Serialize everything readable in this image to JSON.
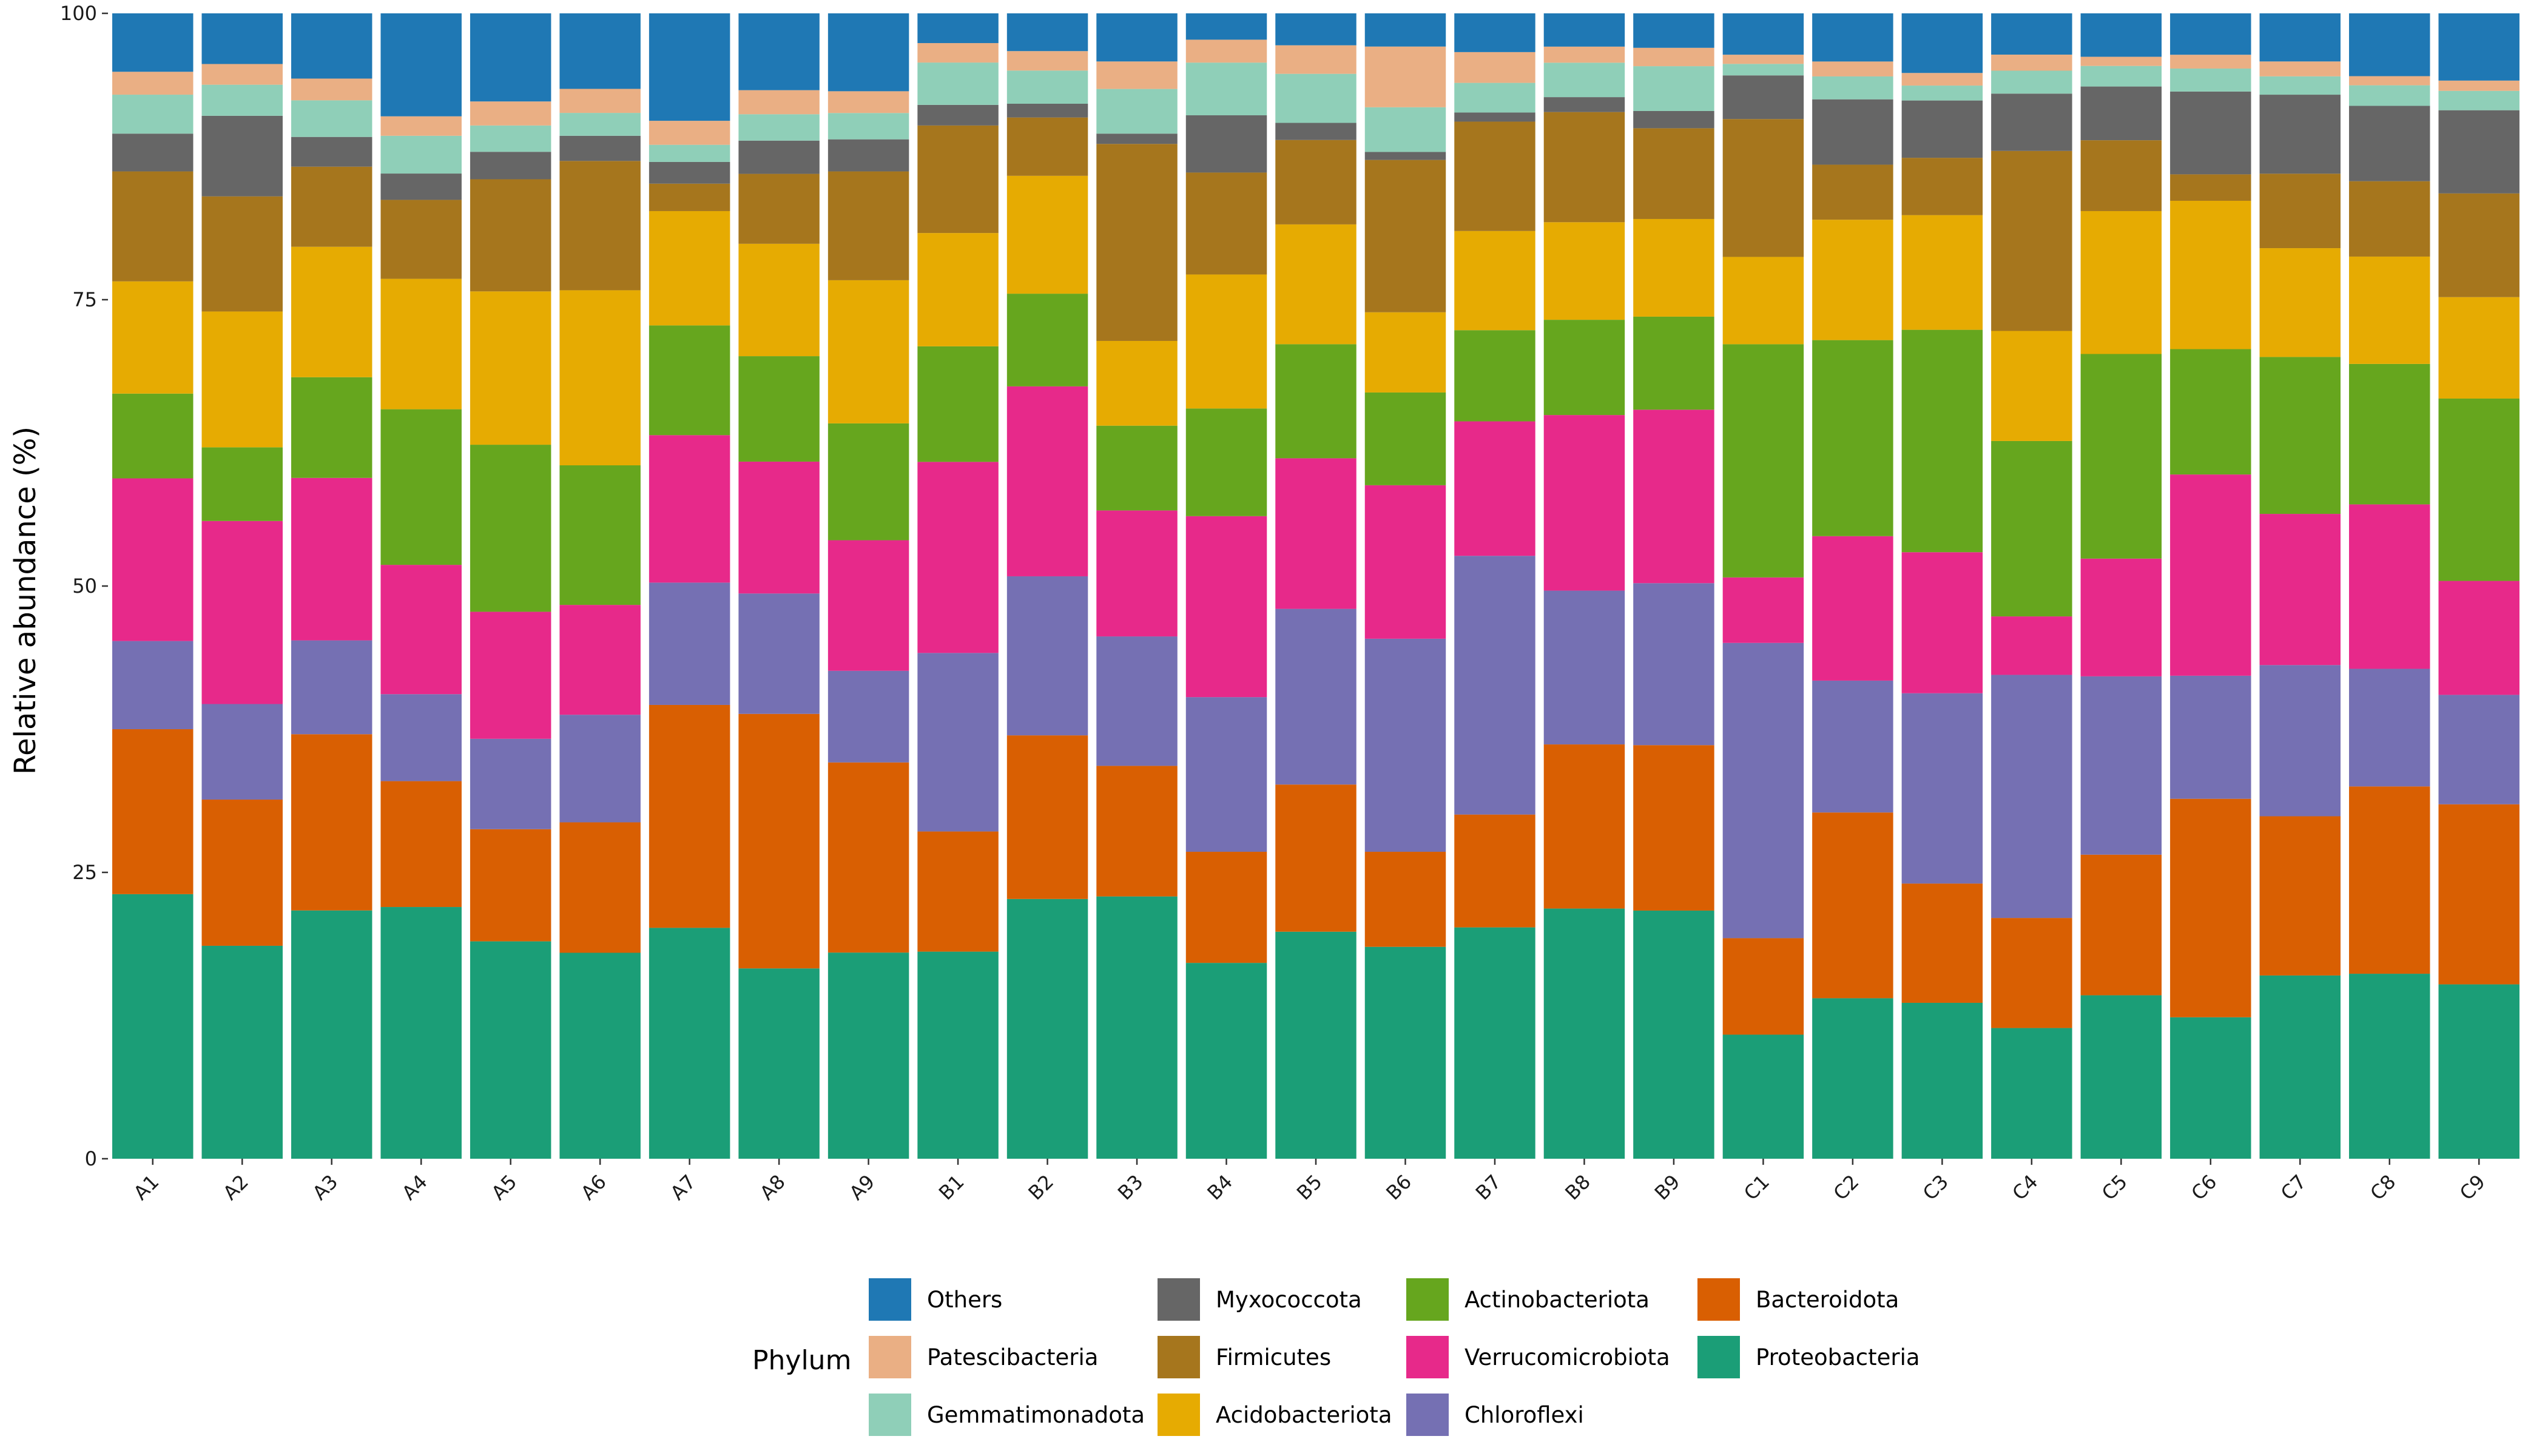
{
  "chart_data": {
    "type": "bar",
    "stacked": true,
    "title": "",
    "xlabel": "",
    "ylabel": "Relative abundance (%)",
    "ylim": [
      0,
      100
    ],
    "yticks": [
      0,
      25,
      50,
      75,
      100
    ],
    "grid": false,
    "legend": {
      "title": "Phylum",
      "placement": "bottom"
    },
    "categories": [
      "A1",
      "A2",
      "A3",
      "A4",
      "A5",
      "A6",
      "A7",
      "A8",
      "A9",
      "B1",
      "B2",
      "B3",
      "B4",
      "B5",
      "B6",
      "B7",
      "B8",
      "B9",
      "C1",
      "C2",
      "C3",
      "C4",
      "C5",
      "C6",
      "C7",
      "C8",
      "C9"
    ],
    "series": [
      {
        "name": "Proteobacteria",
        "color": "#1b9e77",
        "values": [
          23.1,
          18.5,
          21.7,
          22.0,
          19.0,
          18.0,
          20.2,
          16.6,
          18.0,
          18.1,
          22.7,
          22.9,
          17.1,
          19.9,
          18.5,
          20.3,
          21.8,
          21.6,
          10.8,
          14.0,
          13.6,
          11.4,
          14.3,
          12.3,
          16.0,
          16.2,
          15.3
        ]
      },
      {
        "name": "Bacteroidota",
        "color": "#d95f02",
        "values": [
          14.4,
          12.7,
          15.4,
          11.0,
          9.8,
          11.4,
          19.5,
          22.2,
          16.6,
          10.5,
          14.3,
          11.4,
          9.7,
          12.9,
          8.3,
          9.9,
          14.3,
          14.4,
          8.4,
          16.2,
          10.4,
          9.6,
          12.3,
          19.0,
          13.9,
          16.4,
          15.8
        ]
      },
      {
        "name": "Chloroflexi",
        "color": "#7570b3",
        "values": [
          7.7,
          8.3,
          8.2,
          7.6,
          7.9,
          9.4,
          10.7,
          10.5,
          8.0,
          15.6,
          13.9,
          11.3,
          13.5,
          15.4,
          18.6,
          22.7,
          13.4,
          14.1,
          25.7,
          11.5,
          16.6,
          21.2,
          15.6,
          10.7,
          13.2,
          10.3,
          9.6
        ]
      },
      {
        "name": "Verrucomicrobiota",
        "color": "#e7298a",
        "values": [
          14.2,
          15.9,
          14.2,
          11.3,
          11.1,
          9.6,
          12.9,
          11.5,
          11.4,
          16.7,
          16.6,
          11.0,
          15.8,
          13.2,
          13.4,
          11.8,
          15.3,
          15.1,
          5.7,
          12.6,
          12.3,
          5.1,
          10.3,
          17.5,
          13.2,
          14.4,
          10.0
        ]
      },
      {
        "name": "Actinobacteriota",
        "color": "#66a61e",
        "values": [
          7.4,
          6.4,
          8.8,
          13.6,
          14.6,
          12.2,
          9.6,
          9.2,
          10.2,
          10.1,
          8.1,
          7.4,
          9.4,
          10.0,
          8.1,
          8.0,
          8.3,
          8.1,
          20.3,
          17.1,
          19.4,
          15.3,
          17.9,
          10.9,
          13.7,
          12.3,
          16.0
        ]
      },
      {
        "name": "Acidobacteriota",
        "color": "#e6ab02",
        "values": [
          9.8,
          11.8,
          11.4,
          11.4,
          13.4,
          15.3,
          10.0,
          9.8,
          12.5,
          9.9,
          10.3,
          7.4,
          11.7,
          10.5,
          7.0,
          8.7,
          8.5,
          8.5,
          7.6,
          10.5,
          10.0,
          9.6,
          12.5,
          12.9,
          9.5,
          9.4,
          8.9
        ]
      },
      {
        "name": "Firmicutes",
        "color": "#a6761d",
        "values": [
          9.6,
          10.0,
          7.0,
          6.9,
          9.8,
          11.3,
          2.4,
          6.1,
          9.5,
          9.4,
          5.1,
          17.2,
          8.9,
          7.4,
          13.3,
          9.6,
          9.6,
          7.9,
          12.0,
          4.8,
          5.0,
          15.7,
          6.2,
          2.3,
          6.5,
          6.6,
          9.1
        ]
      },
      {
        "name": "Myxococcota",
        "color": "#666666",
        "values": [
          3.3,
          7.0,
          2.6,
          2.3,
          2.4,
          2.2,
          1.9,
          2.9,
          2.8,
          1.8,
          1.2,
          0.9,
          5.0,
          1.5,
          0.7,
          0.8,
          1.3,
          1.5,
          3.8,
          5.7,
          5.0,
          5.0,
          4.7,
          7.2,
          6.9,
          6.6,
          7.3
        ]
      },
      {
        "name": "Gemmatimonadota",
        "color": "#8fcfb8",
        "values": [
          3.4,
          2.7,
          3.2,
          3.3,
          2.3,
          2.0,
          1.5,
          2.3,
          2.3,
          3.7,
          2.9,
          3.9,
          4.6,
          4.3,
          3.9,
          2.6,
          3.0,
          3.9,
          1.0,
          2.0,
          1.3,
          2.0,
          1.8,
          2.0,
          1.6,
          1.8,
          1.7
        ]
      },
      {
        "name": "Patescibacteria",
        "color": "#eaaf84",
        "values": [
          2.0,
          1.8,
          1.9,
          1.7,
          2.1,
          2.1,
          2.1,
          2.1,
          1.9,
          1.7,
          1.7,
          2.4,
          2.0,
          2.5,
          5.3,
          2.7,
          1.4,
          1.6,
          0.8,
          1.3,
          1.1,
          1.4,
          0.8,
          1.2,
          1.3,
          0.8,
          0.9
        ]
      },
      {
        "name": "Others",
        "color": "#1f78b4",
        "values": [
          5.1,
          4.4,
          5.7,
          9.0,
          7.7,
          6.6,
          9.4,
          6.7,
          6.8,
          2.6,
          3.3,
          4.2,
          2.3,
          2.8,
          2.9,
          3.4,
          2.9,
          3.0,
          3.6,
          4.2,
          5.2,
          3.6,
          3.8,
          3.6,
          4.2,
          5.5,
          5.9
        ]
      }
    ],
    "legend_rows": [
      [
        "Others",
        "Myxococcota",
        "Actinobacteriota",
        "Bacteroidota"
      ],
      [
        "Patescibacteria",
        "Firmicutes",
        "Verrucomicrobiota",
        "Proteobacteria"
      ],
      [
        "Gemmatimonadota",
        "Acidobacteriota",
        "Chloroflexi"
      ]
    ]
  }
}
